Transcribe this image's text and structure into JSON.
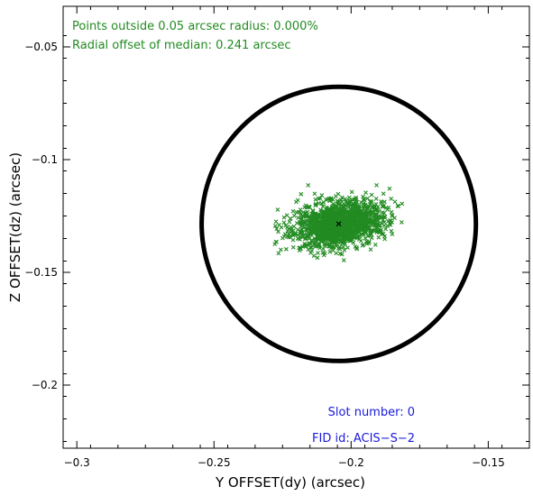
{
  "chart_data": {
    "type": "scatter",
    "title": "",
    "xlabel": "Y OFFSET(dy) (arcsec)",
    "ylabel": "Z OFFSET(dz) (arcsec)",
    "xlim": [
      -0.305,
      -0.135
    ],
    "ylim": [
      -0.228,
      -0.032
    ],
    "x_ticks": [
      -0.3,
      -0.25,
      -0.2,
      -0.15
    ],
    "x_tick_labels": [
      "−0.3",
      "−0.25",
      "−0.2",
      "−0.15"
    ],
    "y_ticks": [
      -0.05,
      -0.1,
      -0.15,
      -0.2
    ],
    "y_tick_labels": [
      "−0.05",
      "−0.1",
      "−0.15",
      "−0.2"
    ],
    "grid": false,
    "annotations": {
      "outside_text": "Points outside 0.05 arcsec radius: 0.000%",
      "median_text": "Radial offset of median: 0.241 arcsec",
      "slot_text": "Slot number: 0",
      "fid_text": "FID id: ACIS−S−2"
    },
    "circle": {
      "center": [
        -0.2045,
        -0.1285
      ],
      "radius": 0.05
    },
    "median_point": [
      -0.2045,
      -0.1285
    ],
    "cluster": {
      "center": [
        -0.2045,
        -0.1285
      ],
      "spread_y": [
        -0.228,
        -0.18
      ],
      "spread_z": [
        -0.153,
        -0.111
      ],
      "approx_count": 1500
    },
    "colors": {
      "points": "#228b22",
      "annotation_green": "#228b22",
      "annotation_blue": "#1a1adb",
      "circle": "#000000",
      "axes": "#000000"
    }
  }
}
